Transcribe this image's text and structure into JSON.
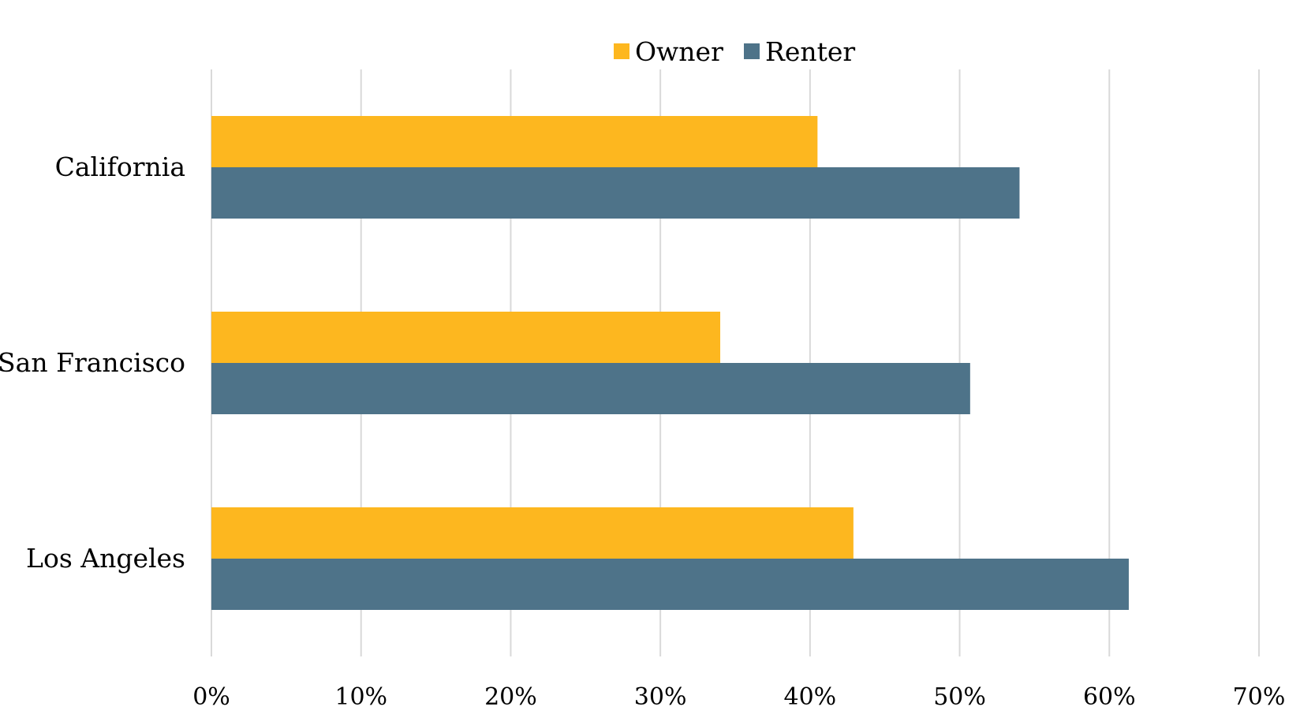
{
  "chart_data": {
    "type": "bar",
    "orientation": "horizontal",
    "title": "",
    "xlabel": "",
    "ylabel": "",
    "categories": [
      "California",
      "San Francisco",
      "Los Angeles"
    ],
    "series": [
      {
        "name": "Owner",
        "color": "#FDB71F",
        "values": [
          0.405,
          0.34,
          0.429
        ]
      },
      {
        "name": "Renter",
        "color": "#4E7389",
        "values": [
          0.54,
          0.507,
          0.613
        ]
      }
    ],
    "xlim": [
      0,
      0.7
    ],
    "xticks": [
      0,
      0.1,
      0.2,
      0.3,
      0.4,
      0.5,
      0.6,
      0.7
    ],
    "xtick_labels": [
      "0%",
      "10%",
      "20%",
      "30%",
      "40%",
      "50%",
      "60%",
      "70%"
    ],
    "grid": "vertical",
    "legend_position": "top-center"
  }
}
